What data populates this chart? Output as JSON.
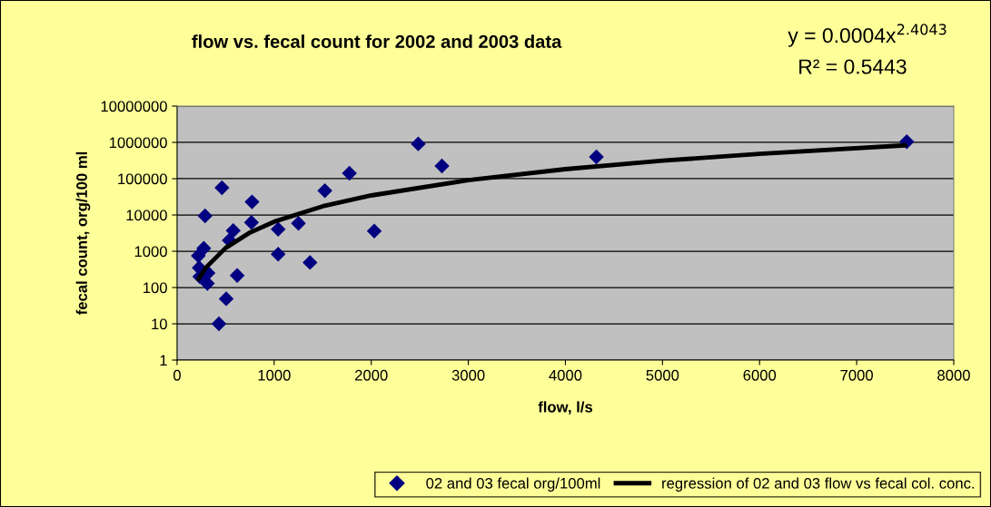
{
  "chart_data": {
    "type": "scatter",
    "title": "flow vs. fecal count for 2002 and 2003 data",
    "xlabel": "flow, l/s",
    "ylabel": "fecal count, org/100 ml",
    "annotations": [
      "y = 0.0004x$^{2.4043}$",
      "R² = 0.5443"
    ],
    "series": [
      {
        "name": "02 and 03 fecal org/100ml",
        "color": "#000080",
        "marker": "diamond",
        "x": [
          462,
          288,
          772,
          766,
          578,
          537,
          275,
          219,
          228,
          234,
          319,
          312,
          619,
          506,
          431,
          1041,
          1041,
          1250,
          1369,
          1522,
          1775,
          2031,
          2484,
          2728,
          4319,
          7516
        ],
        "values": [
          56000,
          9400,
          22900,
          6200,
          3700,
          2000,
          1200,
          750,
          350,
          200,
          250,
          130,
          215,
          49,
          10,
          4050,
          830,
          5850,
          490,
          46400,
          141000,
          3600,
          910000,
          224000,
          398000,
          1040000
        ]
      },
      {
        "name": "regression of 02 and 03 flow vs fecal col. conc.",
        "type": "line",
        "color": "#000000",
        "marker": "none",
        "line_style": "solid",
        "x": [
          220,
          300,
          500,
          750,
          1000,
          1500,
          2000,
          3000,
          4000,
          5000,
          6000,
          7500
        ],
        "values": [
          171,
          362,
          1233,
          3270,
          6520,
          17300,
          34500,
          91500,
          183000,
          313000,
          485000,
          829000
        ]
      }
    ],
    "xlim": [
      0,
      8000
    ],
    "xticks": [
      0,
      1000,
      2000,
      3000,
      4000,
      5000,
      6000,
      7000,
      8000
    ],
    "ylim": [
      1,
      10000000
    ],
    "yticks": [
      1,
      10,
      100,
      1000,
      10000,
      100000,
      1000000,
      10000000
    ],
    "log": "y",
    "grid": "y",
    "legend": "bottom"
  }
}
